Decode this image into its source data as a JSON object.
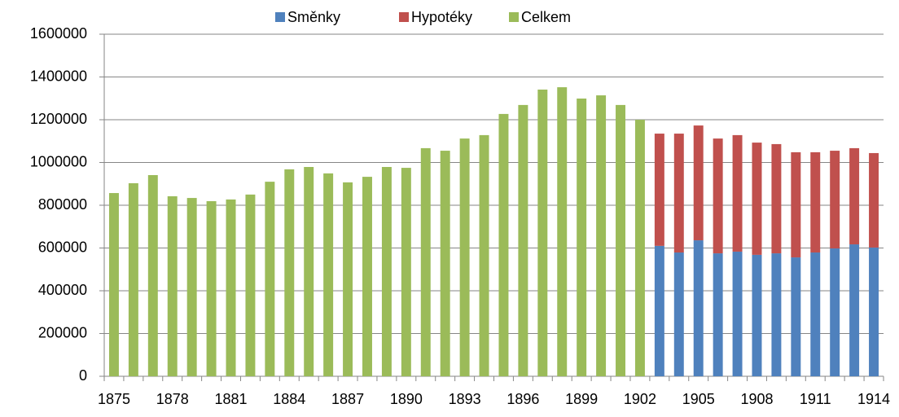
{
  "chart_data": {
    "type": "stacked_bar",
    "categories": [
      "1875",
      null,
      null,
      "1878",
      null,
      null,
      "1881",
      null,
      null,
      "1884",
      null,
      null,
      "1887",
      null,
      null,
      "1890",
      null,
      null,
      "1893",
      null,
      null,
      "1896",
      null,
      null,
      "1899",
      null,
      null,
      "1902",
      null,
      null,
      "1905",
      null,
      null,
      "1908",
      null,
      null,
      "1911",
      null,
      null,
      "1914"
    ],
    "series": [
      {
        "name": "Směnky",
        "color": "#4f81bd",
        "values": [
          null,
          null,
          null,
          null,
          null,
          null,
          null,
          null,
          null,
          null,
          null,
          null,
          null,
          null,
          null,
          null,
          null,
          null,
          null,
          null,
          null,
          null,
          null,
          null,
          null,
          null,
          null,
          null,
          610000,
          579000,
          636000,
          575000,
          583000,
          568000,
          575000,
          556000,
          579000,
          598000,
          617000,
          602000
        ]
      },
      {
        "name": "Hypotéky",
        "color": "#c0504d",
        "values": [
          null,
          null,
          null,
          null,
          null,
          null,
          null,
          null,
          null,
          null,
          null,
          null,
          null,
          null,
          null,
          null,
          null,
          null,
          null,
          null,
          null,
          null,
          null,
          null,
          null,
          null,
          null,
          null,
          525000,
          556000,
          537000,
          537000,
          545000,
          525000,
          511000,
          492000,
          469000,
          457000,
          450000,
          442000
        ]
      },
      {
        "name": "Celkem",
        "color": "#9bbb59",
        "values": [
          857000,
          903000,
          941000,
          842000,
          834000,
          819000,
          827000,
          850000,
          910000,
          968000,
          979000,
          949000,
          907000,
          933000,
          979000,
          975000,
          1067000,
          1055000,
          1112000,
          1128000,
          1227000,
          1269000,
          1341000,
          1352000,
          1299000,
          1314000,
          1269000,
          1200000,
          null,
          null,
          null,
          null,
          null,
          null,
          null,
          null,
          null,
          null,
          null,
          null
        ]
      }
    ],
    "ylim": [
      0,
      1600000
    ],
    "yticks": [
      0,
      200000,
      400000,
      600000,
      800000,
      1000000,
      1200000,
      1400000,
      1600000
    ],
    "grid": true,
    "legend": "top"
  }
}
